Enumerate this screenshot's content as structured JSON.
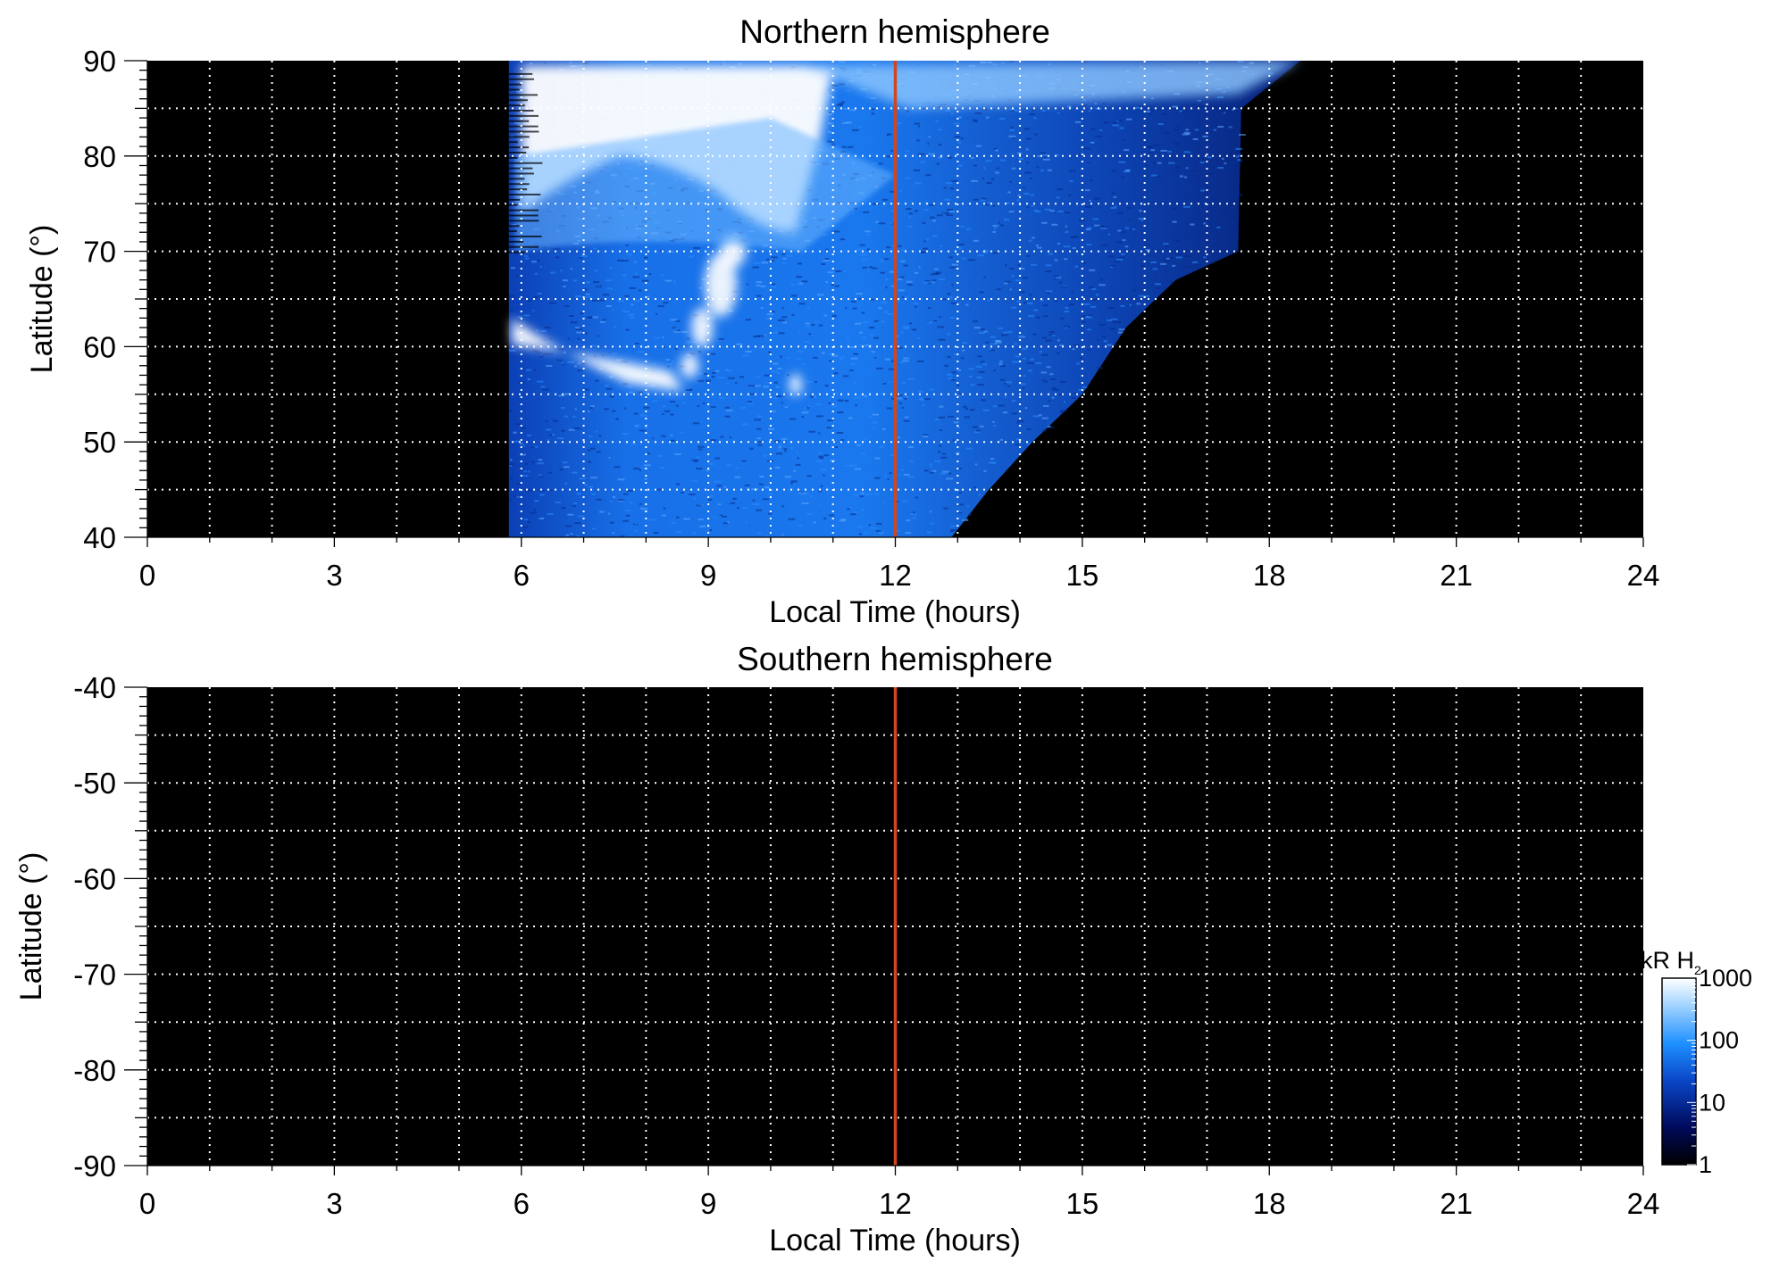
{
  "chart_data": [
    {
      "type": "heatmap",
      "title": "Northern hemisphere",
      "xlabel": "Local Time (hours)",
      "ylabel": "Latitude (°)",
      "xlim": [
        0,
        24
      ],
      "ylim": [
        40,
        90
      ],
      "x_ticks": [
        0,
        3,
        6,
        9,
        12,
        15,
        18,
        21,
        24
      ],
      "y_ticks": [
        40,
        50,
        60,
        70,
        80,
        90
      ],
      "x_ticks_minor_step": 1,
      "y_ticks_minor_step": 5,
      "grid": true,
      "noon_line_x": 12,
      "coverage": {
        "description_free": true,
        "dawn_edge_lt": 5.8,
        "dusk_boundary": [
          [
            12.9,
            40
          ],
          [
            13.5,
            45
          ],
          [
            14.2,
            50
          ],
          [
            15.0,
            55
          ],
          [
            15.7,
            62
          ],
          [
            16.5,
            67
          ],
          [
            17.5,
            70
          ],
          [
            17.55,
            85
          ],
          [
            18.5,
            90
          ]
        ]
      },
      "bright_features": [
        {
          "lt": [
            5.8,
            8.6
          ],
          "lat": [
            55.5,
            63
          ],
          "level": 1000
        },
        {
          "lt": [
            8.8,
            9.6
          ],
          "lat": [
            57,
            70
          ],
          "level": 1000
        },
        {
          "lt": [
            6.0,
            10.5
          ],
          "lat": [
            70,
            90
          ],
          "level": 1000
        },
        {
          "lt": [
            10.2,
            10.6
          ],
          "lat": [
            55,
            60
          ],
          "level": 800
        }
      ]
    },
    {
      "type": "heatmap",
      "title": "Southern hemisphere",
      "xlabel": "Local Time (hours)",
      "ylabel": "Latitude (°)",
      "xlim": [
        0,
        24
      ],
      "ylim": [
        -90,
        -40
      ],
      "x_ticks": [
        0,
        3,
        6,
        9,
        12,
        15,
        18,
        21,
        24
      ],
      "y_ticks": [
        -40,
        -50,
        -60,
        -70,
        -80,
        -90
      ],
      "x_ticks_minor_step": 1,
      "y_ticks_minor_step": 5,
      "grid": true,
      "noon_line_x": 12,
      "coverage": null
    }
  ],
  "colorbar": {
    "unit_label": "kR H",
    "unit_subscript": "2",
    "scale": "log",
    "ticks": [
      "1000",
      "100",
      "10",
      "1"
    ],
    "tick_values": [
      1000,
      100,
      10,
      1
    ],
    "colors": [
      "#000000",
      "#000a5a",
      "#0a46c8",
      "#1e90ff",
      "#a0d2ff",
      "#ffffff"
    ]
  },
  "colors": {
    "background": "#000000",
    "grid": "#ffffff",
    "noon_line": "#d2461e"
  }
}
